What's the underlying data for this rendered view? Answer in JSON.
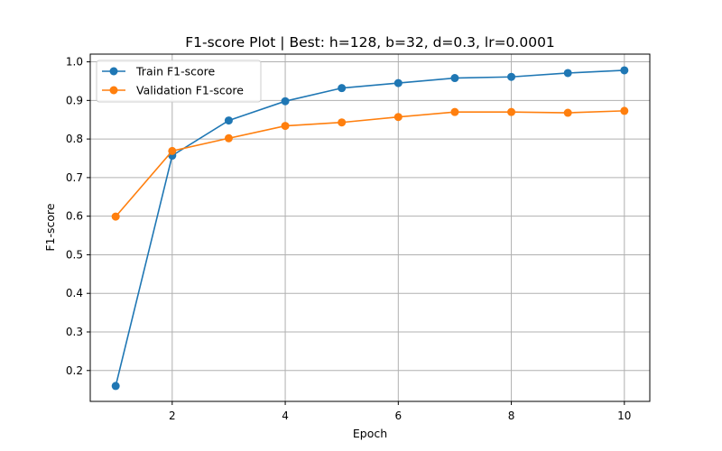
{
  "chart_data": {
    "type": "line",
    "title": "F1-score Plot | Best: h=128, b=32, d=0.3, lr=0.0001",
    "xlabel": "Epoch",
    "ylabel": "F1-score",
    "xlim": [
      0.55,
      10.45
    ],
    "ylim": [
      0.12,
      1.02
    ],
    "xticks": [
      2,
      4,
      6,
      8,
      10
    ],
    "yticks": [
      0.2,
      0.3,
      0.4,
      0.5,
      0.6,
      0.7,
      0.8,
      0.9,
      1.0
    ],
    "grid": true,
    "legend_position": "top-left",
    "x": [
      1,
      2,
      3,
      4,
      5,
      6,
      7,
      8,
      9,
      10
    ],
    "series": [
      {
        "name": "Train F1-score",
        "color": "#1f77b4",
        "values": [
          0.16,
          0.757,
          0.848,
          0.898,
          0.932,
          0.945,
          0.958,
          0.961,
          0.971,
          0.978
        ]
      },
      {
        "name": "Validation F1-score",
        "color": "#ff7f0e",
        "values": [
          0.599,
          0.769,
          0.802,
          0.834,
          0.843,
          0.857,
          0.87,
          0.87,
          0.868,
          0.873
        ]
      }
    ]
  }
}
